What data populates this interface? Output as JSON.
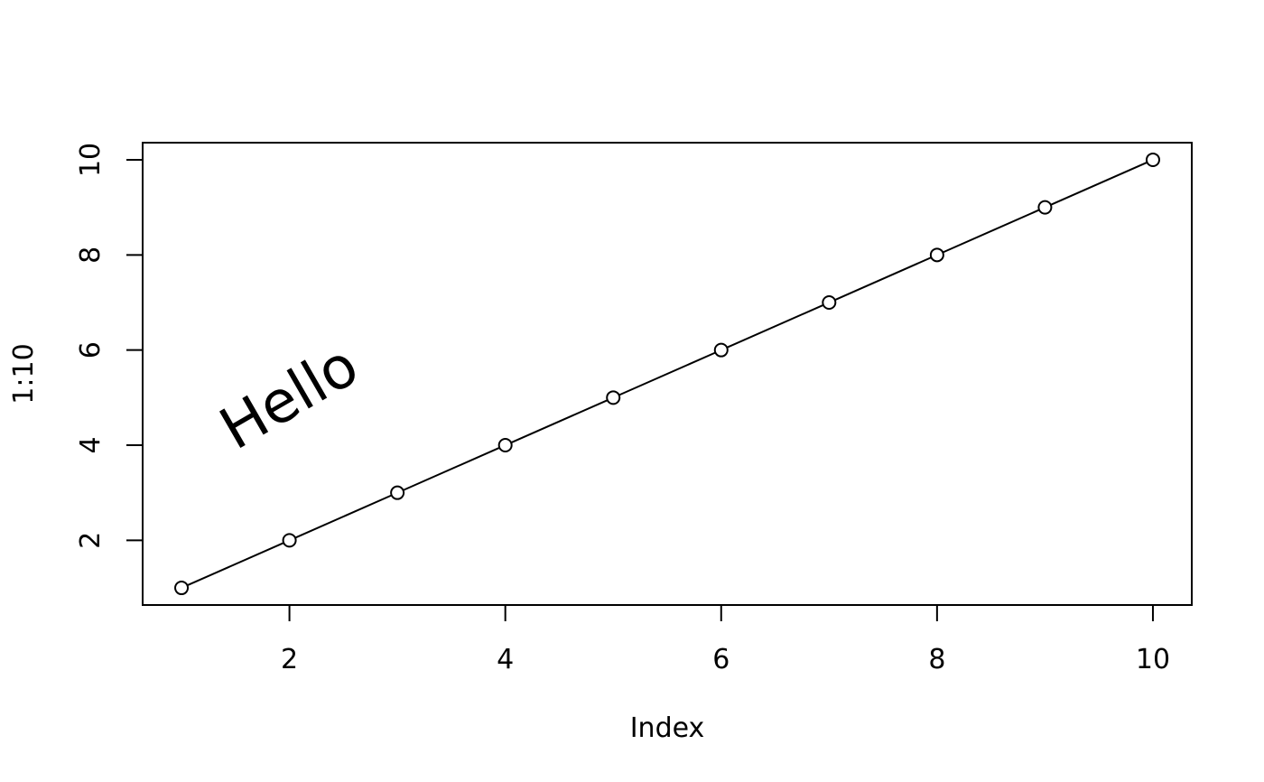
{
  "chart_data": {
    "type": "line",
    "title": "",
    "xlabel": "Index",
    "ylabel": "1:10",
    "x": [
      1,
      2,
      3,
      4,
      5,
      6,
      7,
      8,
      9,
      10
    ],
    "y": [
      1,
      2,
      3,
      4,
      5,
      6,
      7,
      8,
      9,
      10
    ],
    "xticks": [
      2,
      4,
      6,
      8,
      10
    ],
    "yticks": [
      2,
      4,
      6,
      8,
      10
    ],
    "xlim": [
      0.64,
      10.36
    ],
    "ylim": [
      0.64,
      10.36
    ],
    "markers": "open-circle",
    "line": true,
    "grid": false,
    "line_color": "#000000",
    "annotations": [
      {
        "text": "Hello",
        "x": 2,
        "y": 5,
        "angle": 30
      }
    ]
  }
}
